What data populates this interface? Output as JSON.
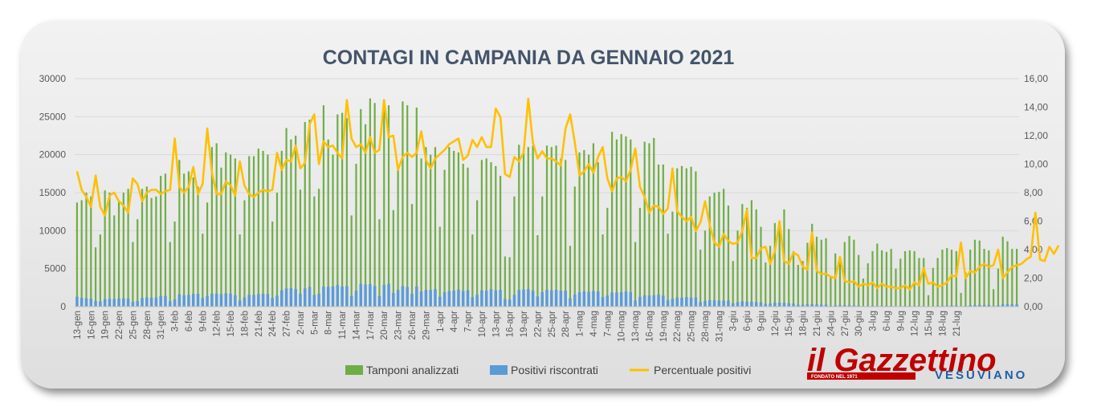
{
  "chart_data": {
    "type": "bar+line",
    "title": "CONTAGI IN CAMPANIA DA GENNAIO 2021",
    "y_left": {
      "ylim": [
        0,
        30000
      ],
      "ticks": [
        "0",
        "5000",
        "10000",
        "15000",
        "20000",
        "25000",
        "30000"
      ]
    },
    "y_right": {
      "ylim": [
        0,
        16
      ],
      "ticks": [
        "0,00",
        "2,00",
        "4,00",
        "6,00",
        "8,00",
        "10,00",
        "12,00",
        "14,00",
        "16,00"
      ]
    },
    "x_tick_labels": [
      "13-gen",
      "16-gen",
      "19-gen",
      "22-gen",
      "25-gen",
      "28-gen",
      "31-gen",
      "3-feb",
      "6-feb",
      "9-feb",
      "12-feb",
      "15-feb",
      "18-feb",
      "21-feb",
      "24-feb",
      "27-feb",
      "2-mar",
      "5-mar",
      "8-mar",
      "11-mar",
      "14-mar",
      "17-mar",
      "20-mar",
      "23-mar",
      "26-mar",
      "29-mar",
      "1-apr",
      "4-apr",
      "7-apr",
      "10-apr",
      "13-apr",
      "16-apr",
      "19-apr",
      "22-apr",
      "25-apr",
      "28-apr",
      "1-mag",
      "4-mag",
      "7-mag",
      "10-mag",
      "13-mag",
      "16-mag",
      "19-mag",
      "22-mag",
      "25-mag",
      "28-mag",
      "31-mag",
      "3-giu",
      "6-giu",
      "9-giu",
      "12-giu",
      "15-giu",
      "18-giu",
      "21-giu",
      "24-giu",
      "27-giu",
      "30-giu",
      "3-lug",
      "6-lug",
      "9-lug",
      "12-lug",
      "15-lug",
      "18-lug",
      "21-lug"
    ],
    "x_tick_step_days": 3,
    "legend_position": "bottom",
    "colors": {
      "tamponi": "#70ad47",
      "positivi": "#5b9bd5",
      "percentuale": "#ffc000"
    },
    "series": [
      {
        "name": "Tamponi analizzati",
        "kind": "bar",
        "axis": "left",
        "values": [
          13700,
          14000,
          15000,
          14500,
          7800,
          9500,
          15300,
          15000,
          12000,
          13800,
          15000,
          15500,
          8500,
          11500,
          15500,
          15800,
          14300,
          14500,
          17200,
          17500,
          8500,
          11200,
          19300,
          17500,
          17800,
          17000,
          15800,
          9600,
          13700,
          21000,
          21500,
          18300,
          20300,
          20000,
          19500,
          9500,
          14000,
          19800,
          19800,
          20800,
          20500,
          20000,
          11200,
          15000,
          20500,
          23500,
          22000,
          22500,
          15400,
          24300,
          24600,
          14500,
          15500,
          26500,
          22000,
          20000,
          25300,
          25500,
          24800,
          12000,
          18800,
          26000,
          24000,
          27400,
          26800,
          11500,
          27200,
          26500,
          12700,
          18300,
          27000,
          26500,
          13500,
          26200,
          19500,
          21000,
          20000,
          21000,
          10500,
          18000,
          21000,
          20500,
          20300,
          18800,
          18300,
          9500,
          14000,
          19300,
          19500,
          19000,
          18500,
          17200,
          6600,
          6500,
          14500,
          21300,
          20500,
          21000,
          21200,
          9400,
          14500,
          21200,
          21000,
          21200,
          19500,
          19300,
          8000,
          15800,
          20300,
          20600,
          20000,
          21500,
          19000,
          9500,
          13000,
          23000,
          22000,
          22700,
          22400,
          22000,
          8500,
          13000,
          21700,
          21500,
          22200,
          18700,
          18700,
          9600,
          12500,
          18200,
          18500,
          18200,
          18400,
          17800,
          7500,
          10000,
          14500,
          15000,
          15100,
          15500,
          13300,
          6000,
          10000,
          13500,
          13000,
          14000,
          12800,
          10500,
          5800,
          8000,
          11000,
          11000,
          12800,
          10200,
          7300,
          5500,
          6000,
          8400,
          10900,
          9200,
          8800,
          9000,
          4000,
          7000,
          6600,
          8500,
          9300,
          8800,
          6800,
          3700,
          5700,
          7300,
          8300,
          7400,
          7200,
          7600,
          5000,
          6300,
          7300,
          7400,
          7300,
          6400,
          6400,
          1500,
          5100,
          6400,
          7500,
          7700,
          7500,
          7300,
          1800,
          4500,
          7500,
          8800,
          8700,
          7600,
          7400,
          2300,
          5000,
          9200,
          8600,
          7600,
          7600
        ]
      },
      {
        "name": "Positivi riscontrati",
        "kind": "bar",
        "axis": "left",
        "values": [
          1300,
          1150,
          1100,
          1050,
          750,
          700,
          980,
          1020,
          1000,
          1080,
          1100,
          1050,
          630,
          750,
          1150,
          1200,
          1180,
          1200,
          1400,
          1400,
          700,
          950,
          1620,
          1500,
          1550,
          1680,
          1700,
          1150,
          1400,
          1700,
          1700,
          1650,
          1750,
          1700,
          1500,
          800,
          1200,
          1550,
          1550,
          1650,
          1700,
          1680,
          1150,
          1450,
          2150,
          2400,
          2450,
          2300,
          1700,
          2400,
          2600,
          1550,
          1700,
          2650,
          2600,
          2650,
          2850,
          2650,
          2700,
          1400,
          2100,
          3000,
          2900,
          2950,
          2700,
          1400,
          2850,
          3000,
          1800,
          2200,
          2700,
          2600,
          1700,
          2650,
          2000,
          2200,
          2200,
          2300,
          1300,
          1900,
          2050,
          2100,
          2250,
          2050,
          2150,
          1250,
          1550,
          2150,
          2100,
          2300,
          2150,
          2200,
          1000,
          900,
          1550,
          2200,
          2250,
          2300,
          2100,
          1350,
          1900,
          2200,
          2150,
          2200,
          2100,
          2100,
          1100,
          1600,
          1900,
          2000,
          1950,
          2050,
          2000,
          1250,
          1450,
          1850,
          1850,
          1900,
          2000,
          1900,
          800,
          1300,
          1500,
          1450,
          1500,
          1600,
          1450,
          850,
          1050,
          1200,
          1180,
          1250,
          1200,
          1200,
          600,
          750,
          850,
          850,
          800,
          800,
          780,
          450,
          600,
          700,
          650,
          640,
          590,
          560,
          350,
          400,
          540,
          530,
          510,
          450,
          400,
          250,
          260,
          300,
          320,
          290,
          260,
          260,
          100,
          170,
          180,
          190,
          180,
          160,
          150,
          80,
          100,
          120,
          110,
          120,
          110,
          110,
          60,
          80,
          90,
          100,
          90,
          90,
          80,
          40,
          70,
          110,
          130,
          130,
          150,
          170,
          40,
          110,
          180,
          210,
          230,
          210,
          210,
          100,
          170,
          300,
          330,
          300,
          300
        ]
      },
      {
        "name": "Percentuale positivi",
        "kind": "line",
        "axis": "right",
        "values": [
          9.5,
          8.2,
          7.7,
          7.0,
          9.2,
          7.0,
          6.4,
          7.8,
          8.0,
          7.4,
          7.1,
          6.6,
          9.0,
          8.6,
          7.4,
          8.0,
          8.2,
          8.2,
          7.9,
          8.1,
          8.2,
          11.8,
          8.4,
          8.0,
          8.4,
          9.8,
          7.9,
          8.6,
          12.5,
          9.4,
          7.9,
          7.9,
          8.8,
          8.5,
          7.8,
          10.2,
          8.5,
          7.9,
          7.7,
          8.0,
          8.2,
          8.1,
          8.2,
          10.8,
          9.6,
          10.3,
          10.2,
          11.3,
          9.7,
          10.1,
          12.8,
          13.5,
          10.0,
          11.6,
          11.2,
          11.3,
          10.8,
          10.4,
          14.5,
          11.8,
          11.2,
          11.4,
          10.8,
          11.9,
          10.8,
          11.0,
          14.5,
          11.9,
          12.0,
          9.6,
          10.5,
          10.8,
          10.5,
          10.8,
          12.3,
          10.3,
          9.7,
          10.4,
          10.7,
          11.0,
          11.4,
          11.6,
          11.8,
          10.3,
          10.6,
          11.7,
          11.2,
          11.9,
          11.2,
          11.2,
          13.9,
          13.3,
          9.3,
          9.1,
          10.5,
          10.2,
          10.8,
          14.6,
          11.5,
          10.4,
          10.9,
          10.4,
          10.4,
          10.2,
          9.9,
          12.5,
          13.5,
          11.5,
          9.2,
          9.5,
          10.0,
          9.4,
          10.5,
          11.2,
          9.0,
          8.1,
          9.0,
          9.1,
          8.8,
          9.6,
          11.1,
          8.4,
          7.7,
          6.6,
          7.1,
          7.0,
          6.5,
          6.9,
          9.7,
          6.7,
          6.3,
          6.0,
          6.3,
          5.3,
          5.9,
          7.4,
          5.7,
          4.5,
          4.2,
          5.1,
          4.6,
          4.4,
          4.5,
          5.3,
          6.8,
          3.4,
          3.4,
          4.1,
          4.2,
          3.0,
          3.9,
          6.0,
          3.2,
          3.0,
          3.8,
          3.6,
          2.8,
          2.6,
          5.2,
          2.5,
          2.3,
          2.3,
          2.1,
          2.0,
          3.5,
          1.8,
          1.7,
          1.8,
          1.4,
          1.6,
          1.5,
          1.7,
          1.3,
          1.6,
          1.4,
          1.4,
          1.3,
          1.3,
          1.5,
          1.2,
          1.7,
          1.5,
          2.7,
          1.6,
          1.7,
          1.4,
          1.5,
          1.7,
          2.2,
          2.1,
          4.5,
          2.0,
          2.5,
          2.4,
          2.8,
          3.0,
          2.8,
          2.9,
          4.0,
          2.0,
          2.4,
          2.8,
          2.9,
          3.0,
          3.3,
          3.5,
          6.6,
          3.3,
          3.2,
          4.2,
          3.7,
          4.3
        ]
      }
    ]
  },
  "legend": {
    "tamponi": "Tamponi analizzati",
    "positivi": "Positivi riscontrati",
    "percentuale": "Percentuale positivi"
  },
  "logo": {
    "main": "il Gazzettino",
    "founded": "FONDATO NEL 1971",
    "sub": "VESUVIANO"
  }
}
